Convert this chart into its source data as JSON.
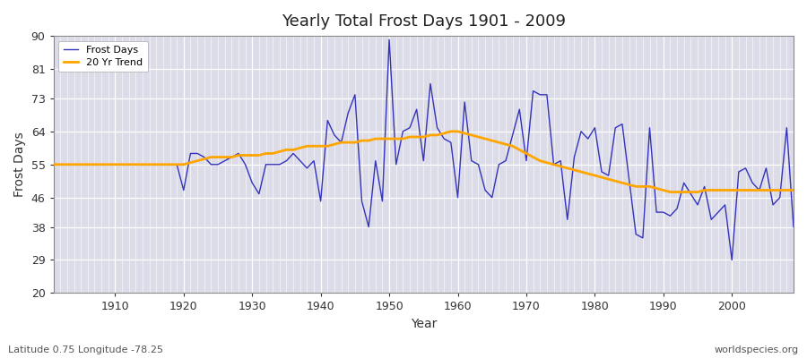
{
  "title": "Yearly Total Frost Days 1901 - 2009",
  "xlabel": "Year",
  "ylabel": "Frost Days",
  "subtitle_left": "Latitude 0.75 Longitude -78.25",
  "subtitle_right": "worldspecies.org",
  "ylim": [
    20,
    90
  ],
  "yticks": [
    20,
    29,
    38,
    46,
    55,
    64,
    73,
    81,
    90
  ],
  "line_color": "#3333bb",
  "trend_color": "#FFA500",
  "bg_color": "#dcdce8",
  "fig_bg_color": "#ffffff",
  "legend_line_label": "Frost Days",
  "legend_trend_label": "20 Yr Trend",
  "years": [
    1901,
    1902,
    1903,
    1904,
    1905,
    1906,
    1907,
    1908,
    1909,
    1910,
    1911,
    1912,
    1913,
    1914,
    1915,
    1916,
    1917,
    1918,
    1919,
    1920,
    1921,
    1922,
    1923,
    1924,
    1925,
    1926,
    1927,
    1928,
    1929,
    1930,
    1931,
    1932,
    1933,
    1934,
    1935,
    1936,
    1937,
    1938,
    1939,
    1940,
    1941,
    1942,
    1943,
    1944,
    1945,
    1946,
    1947,
    1948,
    1949,
    1950,
    1951,
    1952,
    1953,
    1954,
    1955,
    1956,
    1957,
    1958,
    1959,
    1960,
    1961,
    1962,
    1963,
    1964,
    1965,
    1966,
    1967,
    1968,
    1969,
    1970,
    1971,
    1972,
    1973,
    1974,
    1975,
    1976,
    1977,
    1978,
    1979,
    1980,
    1981,
    1982,
    1983,
    1984,
    1985,
    1986,
    1987,
    1988,
    1989,
    1990,
    1991,
    1992,
    1993,
    1994,
    1995,
    1996,
    1997,
    1998,
    1999,
    2000,
    2001,
    2002,
    2003,
    2004,
    2005,
    2006,
    2007,
    2008,
    2009
  ],
  "frost_days": [
    55,
    55,
    55,
    55,
    55,
    55,
    55,
    55,
    55,
    55,
    55,
    55,
    55,
    55,
    55,
    55,
    55,
    55,
    55,
    48,
    58,
    58,
    57,
    55,
    55,
    56,
    57,
    58,
    55,
    50,
    47,
    55,
    55,
    55,
    56,
    58,
    56,
    54,
    56,
    45,
    67,
    63,
    61,
    69,
    74,
    45,
    38,
    56,
    45,
    89,
    55,
    64,
    65,
    70,
    56,
    77,
    65,
    62,
    61,
    46,
    72,
    56,
    55,
    48,
    46,
    55,
    56,
    63,
    70,
    56,
    75,
    74,
    74,
    55,
    56,
    40,
    57,
    64,
    62,
    65,
    53,
    52,
    65,
    66,
    51,
    36,
    35,
    65,
    42,
    42,
    41,
    43,
    50,
    47,
    44,
    49,
    40,
    42,
    44,
    29,
    53,
    54,
    50,
    48,
    54,
    44,
    46,
    65,
    38
  ],
  "trend_years": [
    1901,
    1902,
    1903,
    1904,
    1905,
    1906,
    1907,
    1908,
    1909,
    1910,
    1911,
    1912,
    1913,
    1914,
    1915,
    1916,
    1917,
    1918,
    1919,
    1920,
    1921,
    1922,
    1923,
    1924,
    1925,
    1926,
    1927,
    1928,
    1929,
    1930,
    1931,
    1932,
    1933,
    1934,
    1935,
    1936,
    1937,
    1938,
    1939,
    1940,
    1941,
    1942,
    1943,
    1944,
    1945,
    1946,
    1947,
    1948,
    1949,
    1950,
    1951,
    1952,
    1953,
    1954,
    1955,
    1956,
    1957,
    1958,
    1959,
    1960,
    1961,
    1962,
    1963,
    1964,
    1965,
    1966,
    1967,
    1968,
    1969,
    1970,
    1971,
    1972,
    1973,
    1974,
    1975,
    1976,
    1977,
    1978,
    1979,
    1980,
    1981,
    1982,
    1983,
    1984,
    1985,
    1986,
    1987,
    1988,
    1989,
    1990,
    1991,
    1992,
    1993,
    1994,
    1995,
    1996,
    1997,
    1998,
    1999,
    2000,
    2001,
    2002,
    2003,
    2004,
    2005,
    2006,
    2007,
    2008,
    2009
  ],
  "trend_values": [
    55,
    55,
    55,
    55,
    55,
    55,
    55,
    55,
    55,
    55,
    55,
    55,
    55,
    55,
    55,
    55,
    55,
    55,
    55,
    55,
    55.5,
    56,
    56.5,
    57,
    57,
    57,
    57,
    57.5,
    57.5,
    57.5,
    57.5,
    58,
    58,
    58.5,
    59,
    59,
    59.5,
    60,
    60,
    60,
    60,
    60.5,
    61,
    61,
    61,
    61.5,
    61.5,
    62,
    62,
    62,
    62,
    62,
    62.5,
    62.5,
    62.5,
    63,
    63,
    63.5,
    64,
    64,
    63.5,
    63,
    62.5,
    62,
    61.5,
    61,
    60.5,
    60,
    59,
    58,
    57,
    56,
    55.5,
    55,
    54.5,
    54,
    53.5,
    53,
    52.5,
    52,
    51.5,
    51,
    50.5,
    50,
    49.5,
    49,
    49,
    49,
    48.5,
    48,
    47.5,
    47.5,
    47.5,
    47.5,
    47.5,
    48,
    48,
    48,
    48,
    48,
    48,
    48,
    48,
    48,
    48,
    48,
    48,
    48,
    48
  ]
}
